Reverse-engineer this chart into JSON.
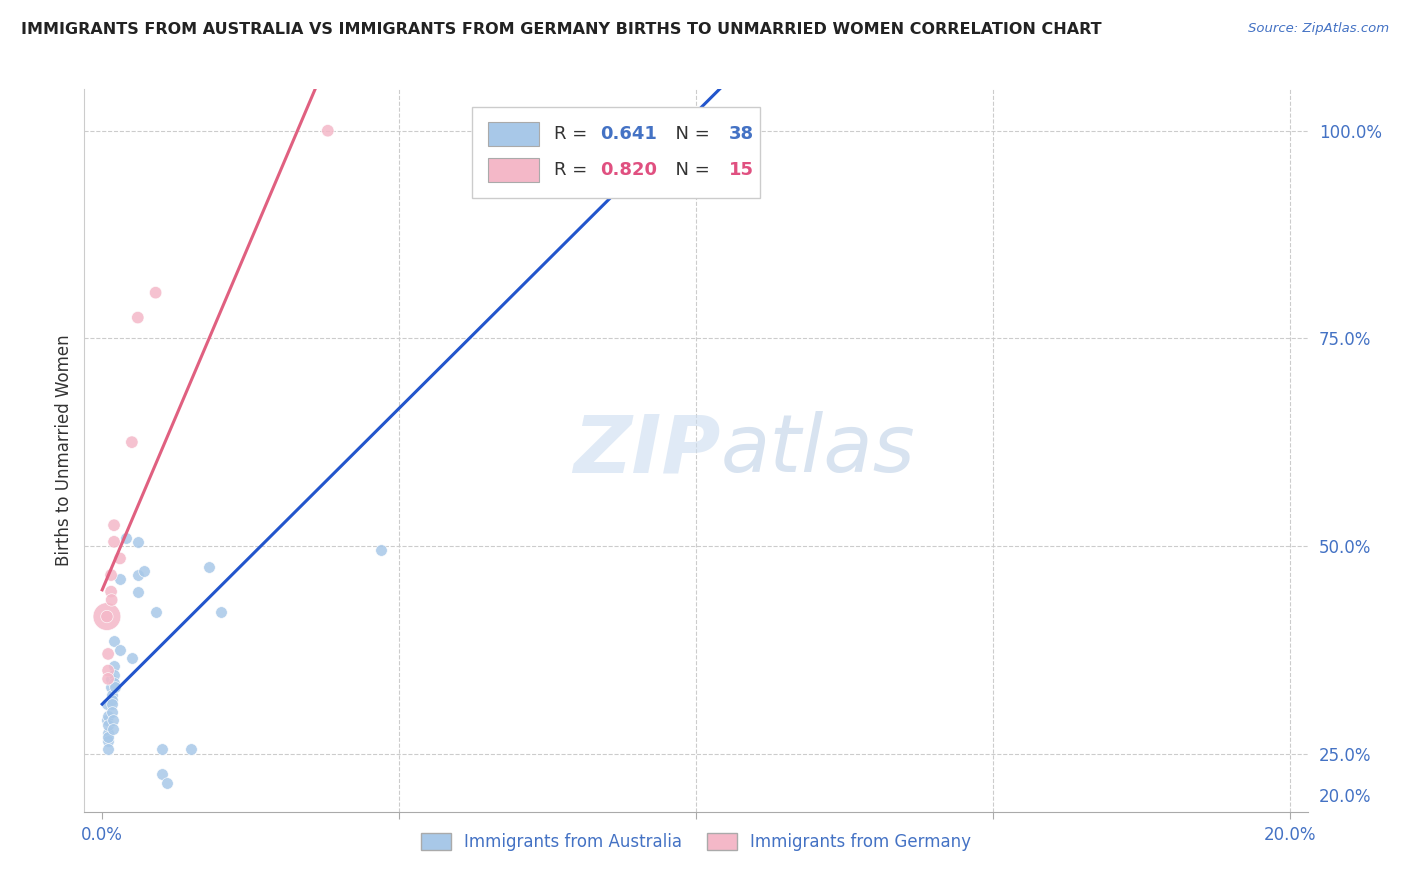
{
  "title": "IMMIGRANTS FROM AUSTRALIA VS IMMIGRANTS FROM GERMANY BIRTHS TO UNMARRIED WOMEN CORRELATION CHART",
  "source": "Source: ZipAtlas.com",
  "ylabel_label": "Births to Unmarried Women",
  "legend_australia": "Immigrants from Australia",
  "legend_germany": "Immigrants from Germany",
  "R_australia": 0.641,
  "N_australia": 38,
  "R_germany": 0.82,
  "N_germany": 15,
  "color_australia": "#a8c8e8",
  "color_germany": "#f4b8c8",
  "color_line_australia": "#2255cc",
  "color_line_germany": "#e06080",
  "watermark_zip": "ZIP",
  "watermark_atlas": "atlas",
  "xlim": [
    0.0,
    0.2
  ],
  "ylim": [
    0.18,
    1.05
  ],
  "x_ticks": [
    0.0,
    0.05,
    0.1,
    0.15,
    0.2
  ],
  "x_tick_labels": [
    "0.0%",
    "",
    "",
    "",
    "20.0%"
  ],
  "y_ticks": [
    0.2,
    0.25,
    0.5,
    0.75,
    1.0
  ],
  "y_tick_labels": [
    "20.0%",
    "25.0%",
    "50.0%",
    "75.0%",
    "100.0%"
  ],
  "australia_points": [
    [
      0.0008,
      0.31
    ],
    [
      0.0008,
      0.29
    ],
    [
      0.0009,
      0.275
    ],
    [
      0.0009,
      0.265
    ],
    [
      0.001,
      0.255
    ],
    [
      0.001,
      0.295
    ],
    [
      0.001,
      0.285
    ],
    [
      0.001,
      0.27
    ],
    [
      0.0015,
      0.34
    ],
    [
      0.0015,
      0.33
    ],
    [
      0.0016,
      0.32
    ],
    [
      0.0016,
      0.315
    ],
    [
      0.0017,
      0.31
    ],
    [
      0.0017,
      0.3
    ],
    [
      0.0018,
      0.29
    ],
    [
      0.0018,
      0.28
    ],
    [
      0.002,
      0.385
    ],
    [
      0.002,
      0.355
    ],
    [
      0.002,
      0.345
    ],
    [
      0.002,
      0.335
    ],
    [
      0.0022,
      0.33
    ],
    [
      0.003,
      0.46
    ],
    [
      0.003,
      0.375
    ],
    [
      0.004,
      0.51
    ],
    [
      0.005,
      0.365
    ],
    [
      0.006,
      0.505
    ],
    [
      0.006,
      0.465
    ],
    [
      0.006,
      0.445
    ],
    [
      0.007,
      0.47
    ],
    [
      0.009,
      0.42
    ],
    [
      0.01,
      0.255
    ],
    [
      0.01,
      0.225
    ],
    [
      0.011,
      0.215
    ],
    [
      0.015,
      0.255
    ],
    [
      0.018,
      0.475
    ],
    [
      0.02,
      0.42
    ],
    [
      0.047,
      0.495
    ],
    [
      0.08,
      1.0
    ]
  ],
  "germany_points": [
    [
      0.0008,
      0.415
    ],
    [
      0.001,
      0.37
    ],
    [
      0.001,
      0.35
    ],
    [
      0.001,
      0.34
    ],
    [
      0.0015,
      0.465
    ],
    [
      0.0015,
      0.445
    ],
    [
      0.0016,
      0.435
    ],
    [
      0.002,
      0.505
    ],
    [
      0.002,
      0.525
    ],
    [
      0.003,
      0.485
    ],
    [
      0.005,
      0.625
    ],
    [
      0.006,
      0.775
    ],
    [
      0.009,
      0.805
    ],
    [
      0.038,
      1.0
    ],
    [
      0.0008,
      0.415
    ]
  ],
  "germany_sizes": [
    400,
    80,
    80,
    80,
    80,
    80,
    80,
    80,
    80,
    80,
    80,
    80,
    80,
    80,
    80
  ],
  "australia_size": 70,
  "germany_size_default": 70
}
